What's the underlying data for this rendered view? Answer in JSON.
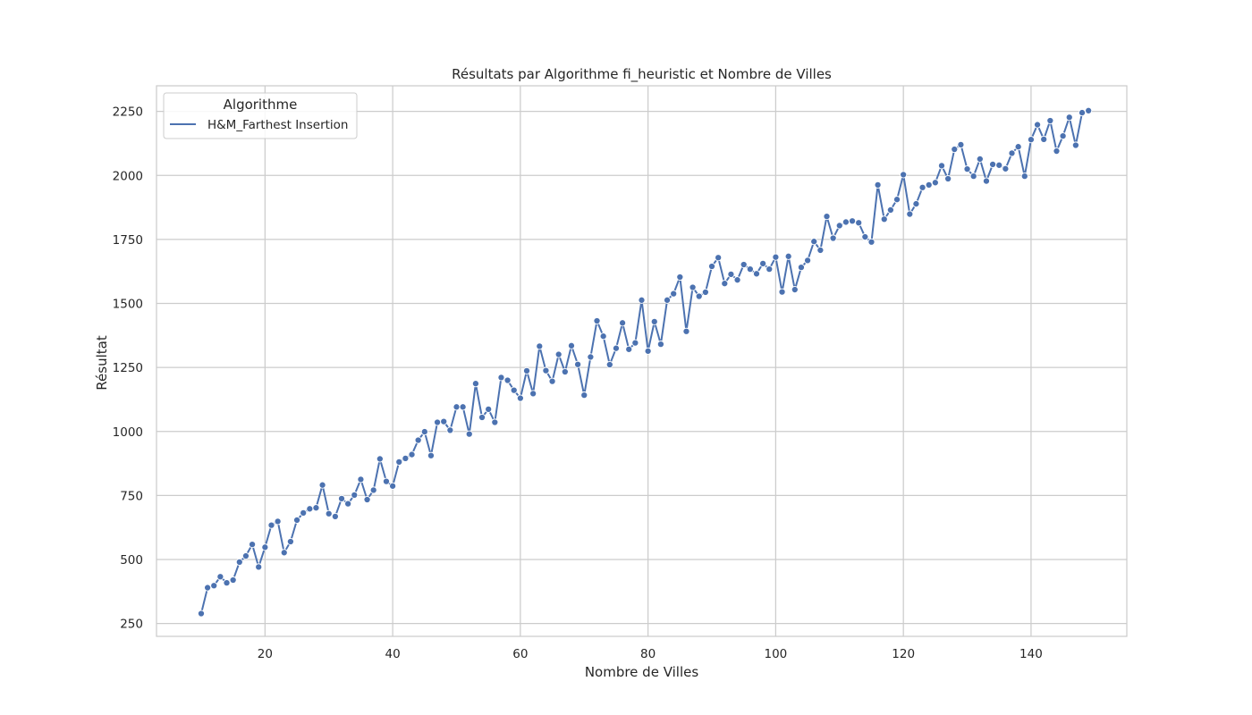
{
  "chart_data": {
    "type": "line",
    "title": "Résultats par Algorithme fi_heuristic et Nombre de Villes",
    "xlabel": "Nombre de Villes",
    "ylabel": "Résultat",
    "xlim": [
      3,
      155
    ],
    "ylim": [
      200,
      2350
    ],
    "xticks": [
      20,
      40,
      60,
      80,
      100,
      120,
      140
    ],
    "yticks": [
      250,
      500,
      750,
      1000,
      1250,
      1500,
      1750,
      2000,
      2250
    ],
    "grid": true,
    "legend": {
      "title": "Algorithme",
      "position": "top-left"
    },
    "colors": {
      "series": "#4c72b0",
      "grid": "#cccccc",
      "frame": "#cccccc"
    },
    "series": [
      {
        "name": "H&M_Farthest Insertion",
        "marker": "circle",
        "x": [
          10,
          11,
          12,
          13,
          14,
          15,
          16,
          17,
          18,
          19,
          20,
          21,
          22,
          23,
          24,
          25,
          26,
          27,
          28,
          29,
          30,
          31,
          32,
          33,
          34,
          35,
          36,
          37,
          38,
          39,
          40,
          41,
          42,
          43,
          44,
          45,
          46,
          47,
          48,
          49,
          50,
          51,
          52,
          53,
          54,
          55,
          56,
          57,
          58,
          59,
          60,
          61,
          62,
          63,
          64,
          65,
          66,
          67,
          68,
          69,
          70,
          71,
          72,
          73,
          74,
          75,
          76,
          77,
          78,
          79,
          80,
          81,
          82,
          83,
          84,
          85,
          86,
          87,
          88,
          89,
          90,
          91,
          92,
          93,
          94,
          95,
          96,
          97,
          98,
          99,
          100,
          101,
          102,
          103,
          104,
          105,
          106,
          107,
          108,
          109,
          110,
          111,
          112,
          113,
          114,
          115,
          116,
          117,
          118,
          119,
          120,
          121,
          122,
          123,
          124,
          125,
          126,
          127,
          128,
          129,
          130,
          131,
          132,
          133,
          134,
          135,
          136,
          137,
          138,
          139,
          140,
          141,
          142,
          143,
          144,
          145,
          146,
          147,
          148,
          149
        ],
        "y": [
          289,
          390,
          398,
          433,
          409,
          420,
          490,
          514,
          559,
          471,
          548,
          634,
          649,
          527,
          570,
          654,
          682,
          698,
          702,
          791,
          679,
          668,
          738,
          718,
          752,
          813,
          734,
          771,
          893,
          805,
          787,
          881,
          895,
          910,
          966,
          999,
          906,
          1036,
          1039,
          1005,
          1096,
          1096,
          990,
          1187,
          1055,
          1087,
          1036,
          1211,
          1200,
          1161,
          1130,
          1237,
          1148,
          1333,
          1238,
          1196,
          1301,
          1233,
          1335,
          1262,
          1142,
          1291,
          1432,
          1372,
          1261,
          1325,
          1424,
          1321,
          1346,
          1513,
          1314,
          1429,
          1341,
          1513,
          1538,
          1603,
          1391,
          1563,
          1528,
          1544,
          1645,
          1679,
          1578,
          1614,
          1592,
          1652,
          1634,
          1616,
          1656,
          1634,
          1681,
          1545,
          1684,
          1554,
          1641,
          1668,
          1742,
          1708,
          1840,
          1755,
          1804,
          1818,
          1822,
          1815,
          1760,
          1740,
          1963,
          1829,
          1865,
          1906,
          2003,
          1849,
          1889,
          1953,
          1963,
          1972,
          2038,
          1987,
          2102,
          2120,
          2025,
          1997,
          2064,
          1978,
          2043,
          2040,
          2026,
          2087,
          2112,
          1997,
          2140,
          2198,
          2141,
          2214,
          2095,
          2154,
          2227,
          2118,
          2245,
          2253
        ]
      }
    ]
  }
}
